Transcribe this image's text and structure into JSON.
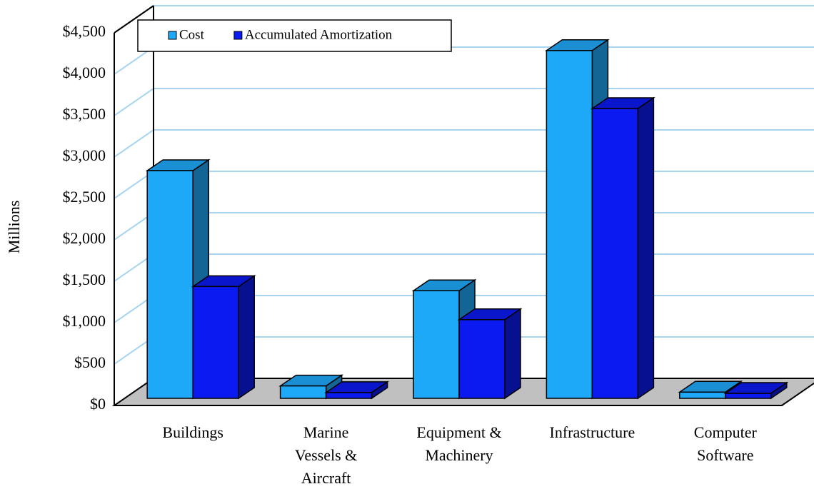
{
  "chart_data": {
    "type": "bar3d",
    "y_label": "Millions",
    "categories": [
      "Buildings",
      "Marine Vessels & Aircraft",
      "Equipment & Machinery",
      "Infrastructure",
      "Computer Software"
    ],
    "series": [
      {
        "name": "Cost",
        "color": "#1ea8f8",
        "values": [
          2750,
          150,
          1300,
          4200,
          75
        ]
      },
      {
        "name": "Accumulated Amortization",
        "color": "#0b1af0",
        "values": [
          1350,
          70,
          950,
          3500,
          60
        ]
      }
    ],
    "ylim": [
      0,
      4500
    ],
    "yticks": [
      {
        "value": 0,
        "label": "$0"
      },
      {
        "value": 500,
        "label": "$500"
      },
      {
        "value": 1000,
        "label": "$1,000"
      },
      {
        "value": 1500,
        "label": "$1,500"
      },
      {
        "value": 2000,
        "label": "$2,000"
      },
      {
        "value": 2500,
        "label": "$2,500"
      },
      {
        "value": 3000,
        "label": "$3,000"
      },
      {
        "value": 3500,
        "label": "$3,500"
      },
      {
        "value": 4000,
        "label": "$4,000"
      },
      {
        "value": 4500,
        "label": "$4,500"
      }
    ],
    "grid": true
  }
}
